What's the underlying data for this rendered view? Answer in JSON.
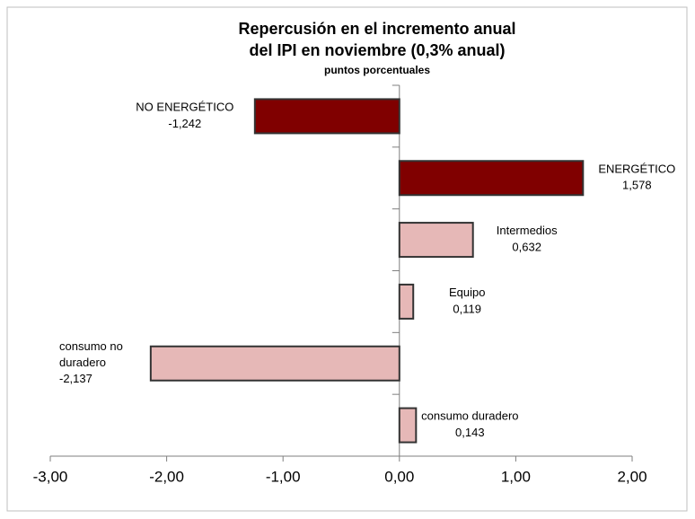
{
  "chart_data": {
    "type": "bar",
    "orientation": "horizontal",
    "title": [
      "Repercusión en el incremento anual",
      "del IPI en noviembre (0,3% anual)"
    ],
    "subtitle": "puntos porcentuales",
    "categories": [
      "NO ENERGÉTICO",
      "ENERGÉTICO",
      "Intermedios",
      "Equipo",
      "consumo no duradero",
      "consumo duradero"
    ],
    "values": [
      -1.242,
      1.578,
      0.632,
      0.119,
      -2.137,
      0.143
    ],
    "value_labels": [
      "-1,242",
      "1,578",
      "0,632",
      "0,119",
      "-2,137",
      "0,143"
    ],
    "colors": [
      "#800000",
      "#800000",
      "#e6b8b7",
      "#e6b8b7",
      "#e6b8b7",
      "#e6b8b7"
    ],
    "xlim": [
      -3,
      2
    ],
    "xticks": [
      {
        "value": -3,
        "label": "-3,00"
      },
      {
        "value": -2,
        "label": "-2,00"
      },
      {
        "value": -1,
        "label": "-1,00"
      },
      {
        "value": 0,
        "label": "0,00"
      },
      {
        "value": 1,
        "label": "1,00"
      },
      {
        "value": 2,
        "label": "2,00"
      }
    ],
    "grid": false
  }
}
